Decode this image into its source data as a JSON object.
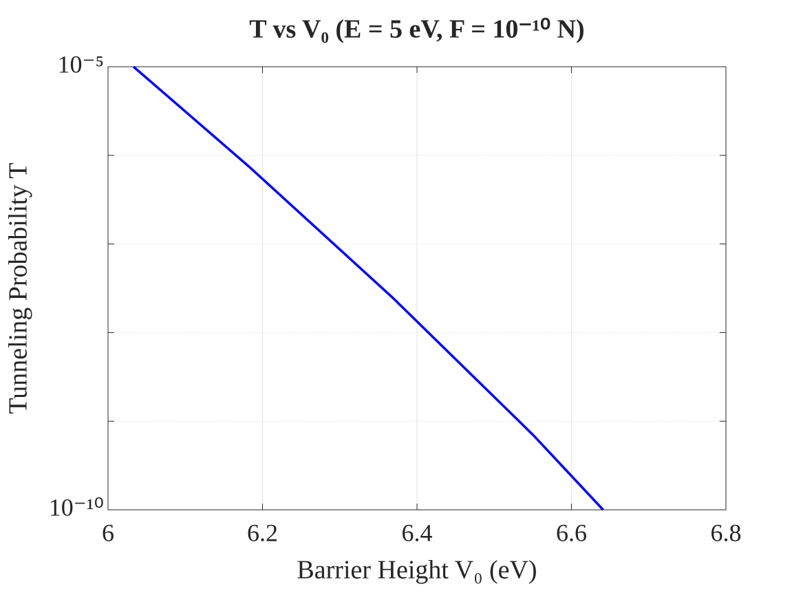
{
  "chart_data": {
    "type": "line",
    "title": "T vs V₀ (E = 5 eV, F = 10⁻¹⁰ N)",
    "x_label": "Barrier Height V₀ (eV)",
    "y_label": "Tunneling Probability T",
    "x": [
      6.033,
      6.183,
      6.368,
      6.551,
      6.641
    ],
    "series": [
      {
        "color": "#0000ff",
        "values": [
          1e-05,
          7.4e-07,
          2.5e-08,
          6.9e-10,
          1e-10
        ]
      }
    ],
    "xlim": [
      6,
      6.8
    ],
    "xticks": [
      6,
      6.2,
      6.4,
      6.6,
      6.8
    ],
    "ylim": [
      1e-10,
      1e-05
    ],
    "yticks": [
      {
        "value": 1e-10,
        "label": "10⁻¹⁰"
      },
      {
        "value": 1e-09,
        "label": null
      },
      {
        "value": 1e-08,
        "label": null
      },
      {
        "value": 1e-07,
        "label": null
      },
      {
        "value": 1e-06,
        "label": null
      },
      {
        "value": 1e-05,
        "label": "10⁻⁵"
      }
    ],
    "log_y": true,
    "grid": true
  }
}
